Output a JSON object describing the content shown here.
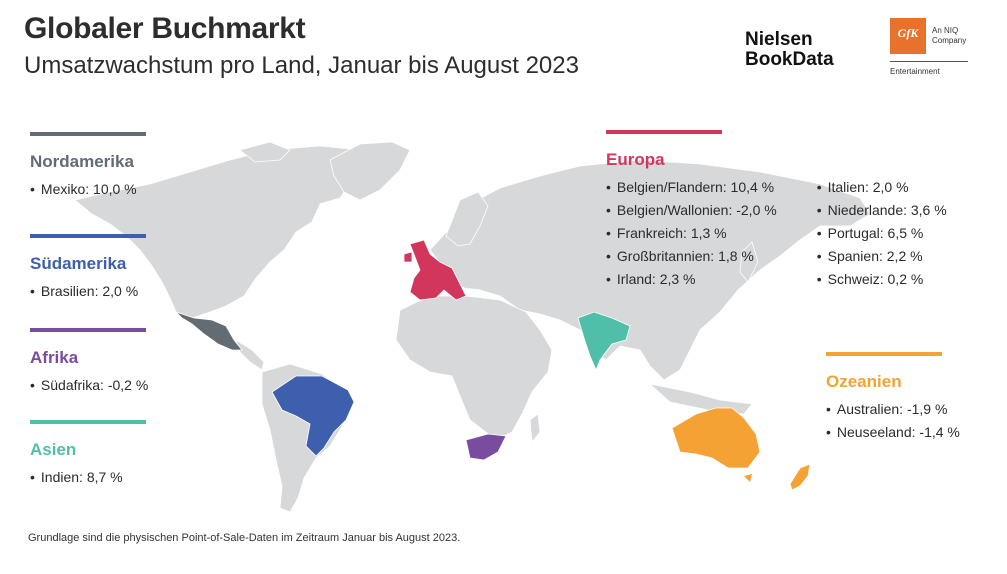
{
  "header": {
    "title": "Globaler Buchmarkt",
    "subtitle": "Umsatzwachstum pro Land, Januar bis August 2023"
  },
  "logos": {
    "nielsen_line1": "Nielsen",
    "nielsen_line2": "BookData",
    "gfk": "GfK",
    "gfk_tag_line1": "An NIQ",
    "gfk_tag_line2": "Company",
    "gfk_sub": "Entertainment"
  },
  "regions": {
    "nordamerika": {
      "name": "Nordamerika",
      "color": "#636b73",
      "items": [
        "Mexiko: 10,0 %"
      ]
    },
    "suedamerika": {
      "name": "Südamerika",
      "color": "#3e5fad",
      "items": [
        "Brasilien: 2,0 %"
      ]
    },
    "afrika": {
      "name": "Afrika",
      "color": "#7a4c9f",
      "items": [
        "Südafrika: -0,2 %"
      ]
    },
    "asien": {
      "name": "Asien",
      "color": "#4fbfaa",
      "items": [
        "Indien: 8,7 %"
      ]
    },
    "europa": {
      "name": "Europa",
      "color": "#d2365d",
      "items_col1": [
        "Belgien/Flandern: 10,4 %",
        "Belgien/Wallonien: -2,0 %",
        "Frankreich: 1,3 %",
        "Großbritannien: 1,8 %",
        "Irland: 2,3 %"
      ],
      "items_col2": [
        "Italien: 2,0 %",
        "Niederlande: 3,6 %",
        "Portugal: 6,5 %",
        "Spanien: 2,2 %",
        "Schweiz: 0,2 %"
      ]
    },
    "ozeanien": {
      "name": "Ozeanien",
      "color": "#f4a234",
      "items": [
        "Australien: -1,9 %",
        "Neuseeland: -1,4 %"
      ]
    }
  },
  "map": {
    "land_color": "#d6d8da",
    "highlighted_countries": [
      "Mexiko",
      "Brasilien",
      "Südafrika",
      "Indien",
      "Belgien",
      "Frankreich",
      "Großbritannien",
      "Irland",
      "Italien",
      "Niederlande",
      "Portugal",
      "Spanien",
      "Schweiz",
      "Australien",
      "Neuseeland"
    ]
  },
  "footnote": "Grundlage sind die physischen Point-of-Sale-Daten im Zeitraum Januar bis August 2023."
}
